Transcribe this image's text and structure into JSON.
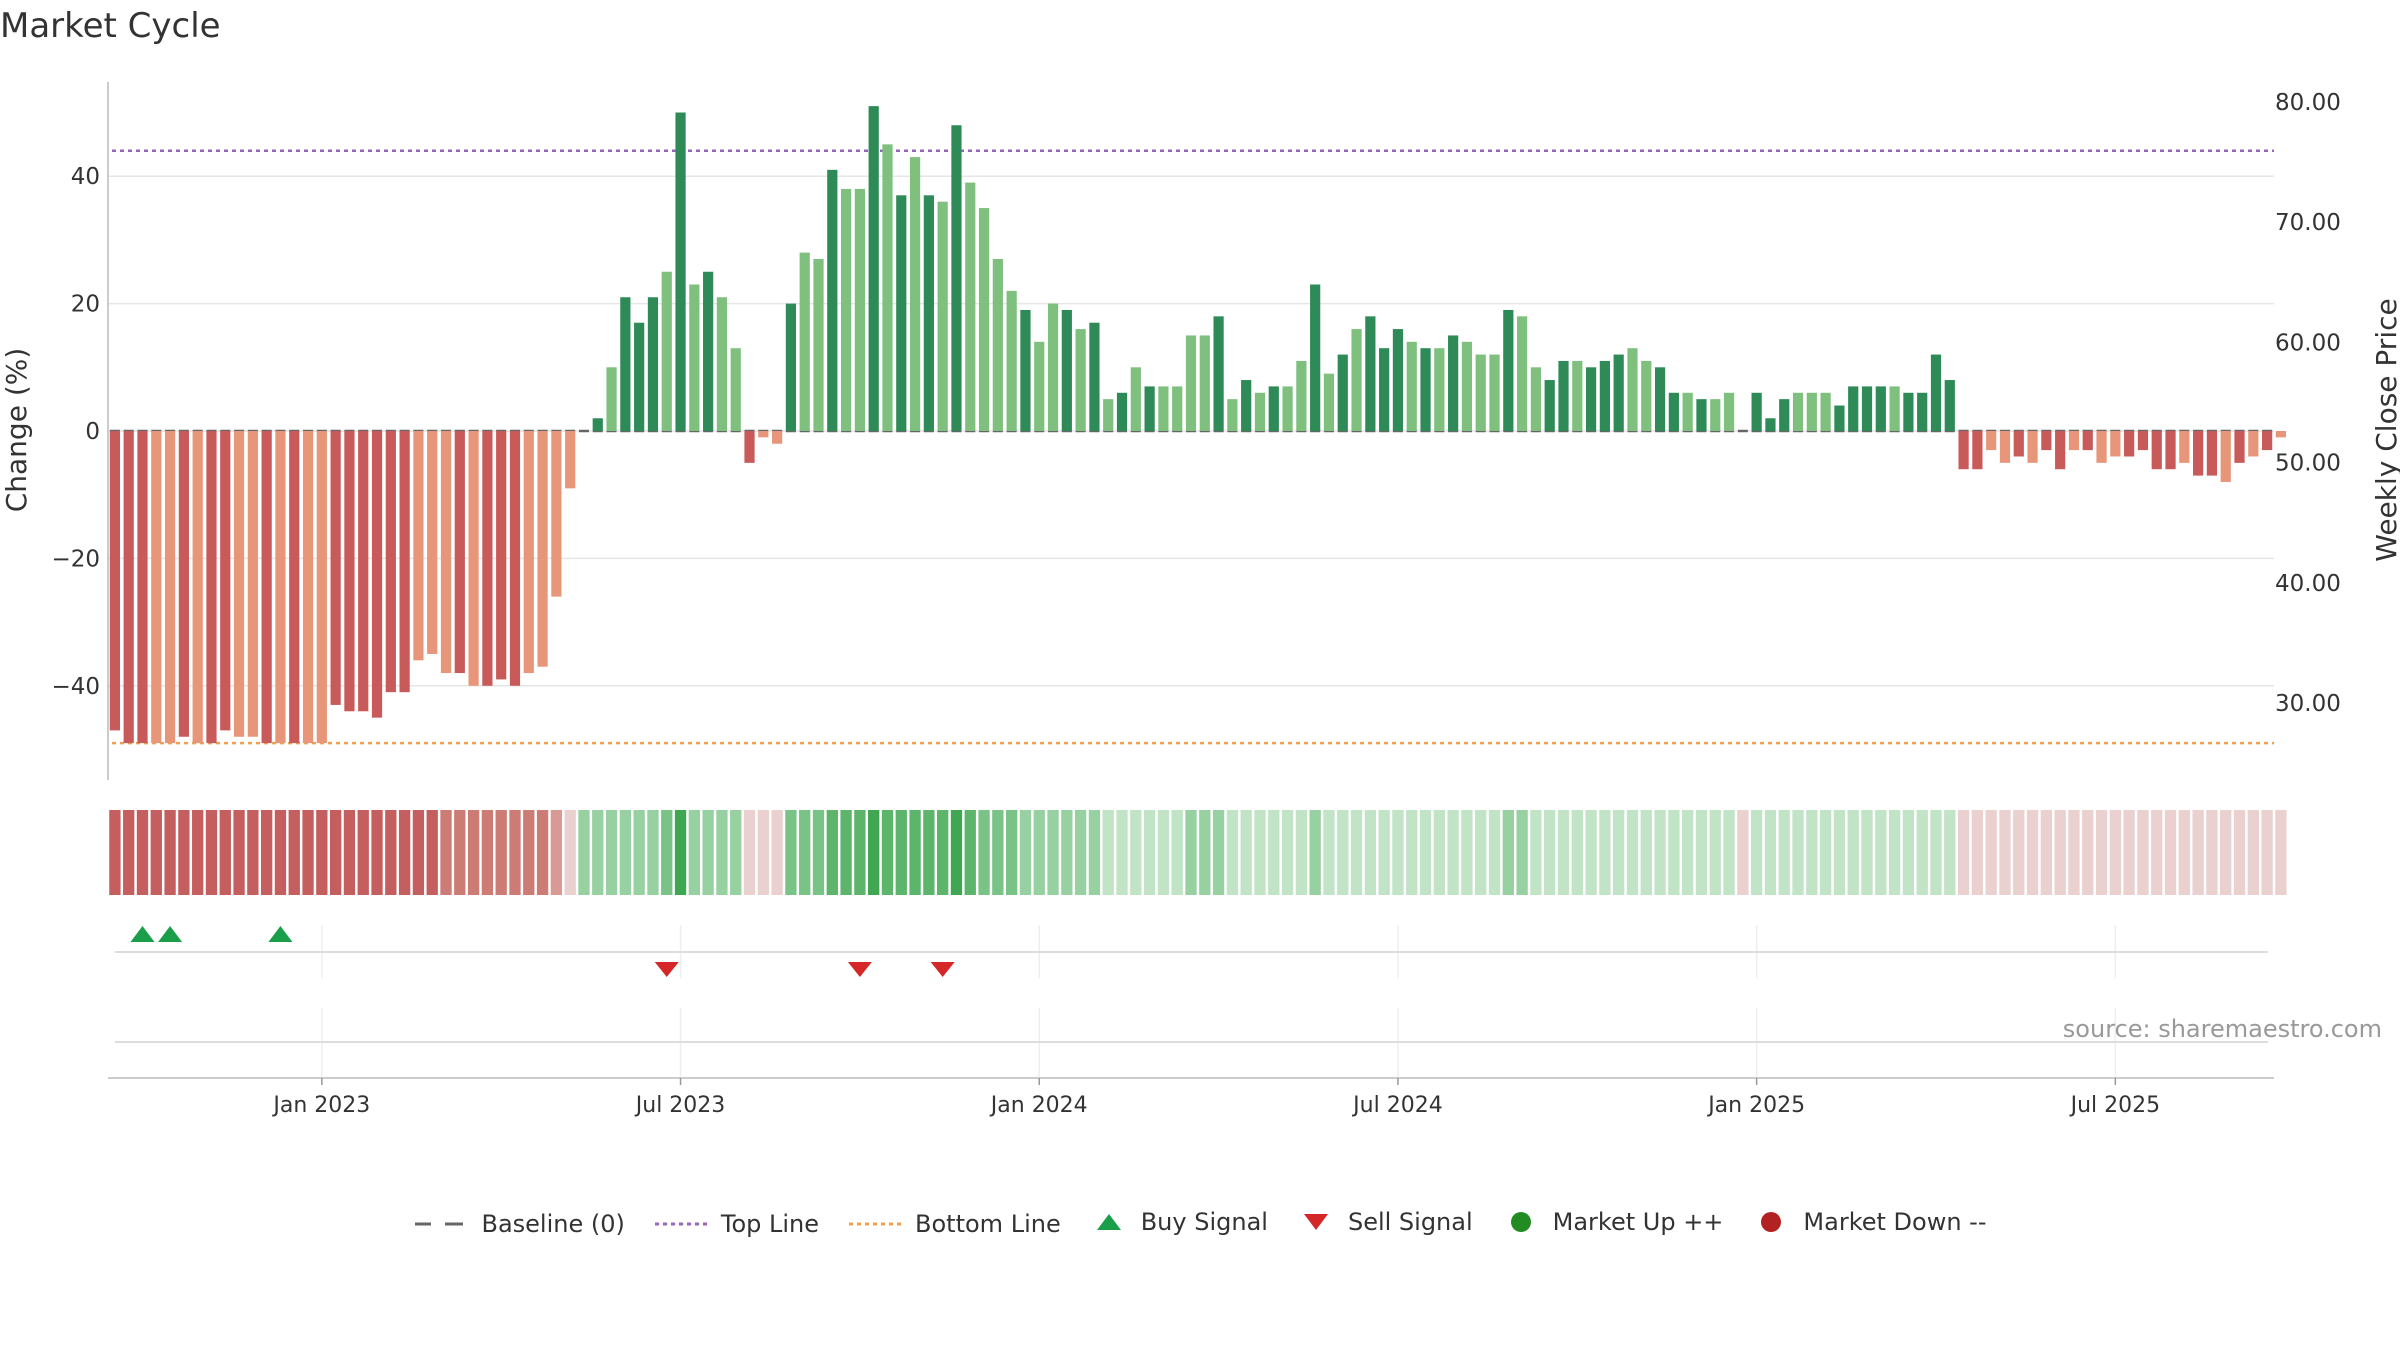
{
  "title": "Market Cycle",
  "source": "source: sharemaestro.com",
  "colors": {
    "up_dark": "#2e8b57",
    "up_light": "#7fc07f",
    "down_dark": "#c95a5a",
    "down_light": "#e8967a",
    "top_line": "#9467bd",
    "bottom_line": "#f0a050",
    "baseline": "#666666",
    "buy": "#1a9e4a",
    "sell": "#d62728",
    "market_up": "#228b22",
    "market_down": "#b22222"
  },
  "legend": [
    {
      "icon": "baseline-dash-icon",
      "label": "Baseline (0)"
    },
    {
      "icon": "top-line-dotted-icon",
      "label": "Top Line"
    },
    {
      "icon": "bottom-line-dotted-icon",
      "label": "Bottom Line"
    },
    {
      "icon": "buy-triangle-up-icon",
      "label": "Buy Signal"
    },
    {
      "icon": "sell-triangle-down-icon",
      "label": "Sell Signal"
    },
    {
      "icon": "market-up-dot-icon",
      "label": "Market Up ++"
    },
    {
      "icon": "market-down-dot-icon",
      "label": "Market Down --"
    }
  ],
  "chart_data": {
    "type": "bar",
    "ylabel": "Change (%)",
    "y2label": "Weekly Close Price",
    "ylim": [
      -55,
      55
    ],
    "yticks": [
      40,
      20,
      0,
      -20,
      -40
    ],
    "ytick_labels": [
      "40",
      "20",
      "0",
      "−20",
      "−40"
    ],
    "y2lim": [
      24.6,
      82.8
    ],
    "y2ticks": [
      80,
      70,
      60,
      50,
      40,
      30
    ],
    "y2tick_labels": [
      "80.00",
      "70.00",
      "60.00",
      "50.00",
      "40.00",
      "30.00"
    ],
    "top_line": 44,
    "bottom_line": -49,
    "x_ticks": [
      {
        "week": 15,
        "label": "Jan 2023"
      },
      {
        "week": 41,
        "label": "Jul 2023"
      },
      {
        "week": 67,
        "label": "Jan 2024"
      },
      {
        "week": 93,
        "label": "Jul 2024"
      },
      {
        "week": 119,
        "label": "Jan 2025"
      },
      {
        "week": 145,
        "label": "Jul 2025"
      }
    ],
    "weeks": 157,
    "values": [
      -47,
      -49,
      -49,
      -49,
      -49,
      -48,
      -49,
      -49,
      -47,
      -48,
      -48,
      -49,
      -49,
      -49,
      -49,
      -49,
      -43,
      -44,
      -44,
      -45,
      -41,
      -41,
      -36,
      -35,
      -38,
      -38,
      -40,
      -40,
      -39,
      -40,
      -38,
      -37,
      -26,
      -9,
      0,
      2,
      10,
      21,
      17,
      21,
      25,
      50,
      23,
      25,
      21,
      13,
      -5,
      -1,
      -2,
      20,
      28,
      27,
      41,
      38,
      38,
      51,
      45,
      37,
      43,
      37,
      36,
      48,
      39,
      35,
      27,
      22,
      19,
      14,
      20,
      19,
      16,
      17,
      5,
      6,
      10,
      7,
      7,
      7,
      15,
      15,
      18,
      5,
      8,
      6,
      7,
      7,
      11,
      23,
      9,
      12,
      16,
      18,
      13,
      16,
      14,
      13,
      13,
      15,
      14,
      12,
      12,
      19,
      18,
      10,
      8,
      11,
      11,
      10,
      11,
      12,
      13,
      11,
      10,
      6,
      6,
      5,
      5,
      6,
      0,
      6,
      2,
      5,
      6,
      6,
      6,
      4,
      7,
      7,
      7,
      7,
      6,
      6,
      12,
      8,
      -6,
      -6,
      -3,
      -5,
      -4,
      -5,
      -3,
      -6,
      -3,
      -3,
      -5,
      -4,
      -4,
      -3,
      -6,
      -6,
      -5,
      -7,
      -7,
      -8,
      -5,
      -4,
      -3,
      -1
    ],
    "shade": [
      1,
      1,
      1,
      1,
      1,
      1,
      1,
      1,
      1,
      1,
      1,
      1,
      1,
      1,
      1,
      1,
      1,
      1,
      1,
      1,
      1,
      1,
      1,
      1,
      1,
      1,
      1,
      1,
      1,
      1,
      1,
      1,
      1,
      1,
      1,
      1,
      1,
      1,
      1,
      1,
      1,
      1,
      1,
      1,
      1,
      1,
      1,
      1,
      1,
      1,
      1,
      1,
      1,
      1,
      1,
      1,
      1,
      1,
      1,
      1,
      1,
      1,
      1,
      1,
      1,
      1,
      1,
      1,
      1,
      1,
      1,
      1,
      1,
      1,
      1,
      1,
      1,
      1,
      1,
      1,
      1,
      1,
      1,
      1,
      1,
      1,
      1,
      1,
      1,
      1,
      1,
      1,
      1,
      1,
      1,
      1,
      1,
      1,
      1,
      1,
      1,
      1,
      1,
      1,
      1,
      1,
      1,
      1,
      1,
      1,
      1,
      1,
      1,
      1,
      1,
      1,
      1,
      1,
      1,
      1,
      1,
      1,
      1,
      1,
      1,
      1,
      1,
      1,
      1,
      1,
      1,
      1,
      1,
      1,
      1,
      1,
      1,
      1,
      1,
      1,
      1,
      1,
      1,
      1,
      1,
      1,
      1,
      1,
      1,
      1,
      1,
      1,
      1,
      1,
      1,
      1,
      1
    ],
    "dark_weeks": [
      0,
      1,
      2,
      5,
      7,
      8,
      11,
      13,
      16,
      17,
      18,
      19,
      20,
      21,
      25,
      27,
      28,
      29,
      35,
      37,
      38,
      39,
      41,
      43,
      46,
      49,
      52,
      55,
      57,
      59,
      61,
      66,
      69,
      71,
      73,
      75,
      80,
      82,
      84,
      87,
      89,
      91,
      92,
      93,
      95,
      97,
      101,
      104,
      105,
      107,
      108,
      109,
      112,
      113,
      115,
      118,
      119,
      120,
      121,
      125,
      126,
      127,
      128,
      130,
      131,
      132,
      133,
      134,
      135,
      138,
      140,
      141,
      143,
      146,
      147,
      148,
      149,
      151,
      152,
      154,
      156
    ],
    "strip": [
      "r3",
      "r3",
      "r3",
      "r3",
      "r3",
      "r3",
      "r3",
      "r3",
      "r3",
      "r3",
      "r3",
      "r3",
      "r3",
      "r3",
      "r3",
      "r3",
      "r3",
      "r3",
      "r3",
      "r3",
      "r3",
      "r3",
      "r3",
      "r3",
      "r2",
      "r2",
      "r2",
      "r2",
      "r2",
      "r2",
      "r2",
      "r2",
      "r1",
      "r0",
      "g1",
      "g1",
      "g1",
      "g1",
      "g1",
      "g1",
      "g2",
      "g4",
      "g1",
      "g1",
      "g1",
      "g1",
      "r0",
      "r0",
      "r0",
      "g2",
      "g2",
      "g2",
      "g3",
      "g3",
      "g3",
      "g4",
      "g3",
      "g3",
      "g3",
      "g3",
      "g3",
      "g4",
      "g3",
      "g2",
      "g2",
      "g2",
      "g1",
      "g1",
      "g1",
      "g1",
      "g1",
      "g1",
      "g0",
      "g0",
      "g0",
      "g0",
      "g0",
      "g0",
      "g1",
      "g1",
      "g1",
      "g0",
      "g0",
      "g0",
      "g0",
      "g0",
      "g0",
      "g1",
      "g0",
      "g0",
      "g0",
      "g0",
      "g0",
      "g0",
      "g0",
      "g0",
      "g0",
      "g0",
      "g0",
      "g0",
      "g0",
      "g1",
      "g1",
      "g0",
      "g0",
      "g0",
      "g0",
      "g0",
      "g0",
      "g0",
      "g0",
      "g0",
      "g0",
      "g0",
      "g0",
      "g0",
      "g0",
      "g0",
      "r0",
      "g0",
      "g0",
      "g0",
      "g0",
      "g0",
      "g0",
      "g0",
      "g0",
      "g0",
      "g0",
      "g0",
      "g0",
      "g0",
      "g0",
      "g0",
      "r0",
      "r0",
      "r0",
      "r0",
      "r0",
      "r0",
      "r0",
      "r0",
      "r0",
      "r0",
      "r0",
      "r0",
      "r0",
      "r0",
      "r0",
      "r0",
      "r0",
      "r0",
      "r0",
      "r0",
      "r0",
      "r0",
      "r0",
      "r0"
    ],
    "buy_signals": [
      2,
      4,
      12
    ],
    "sell_signals": [
      40,
      54,
      60
    ]
  }
}
